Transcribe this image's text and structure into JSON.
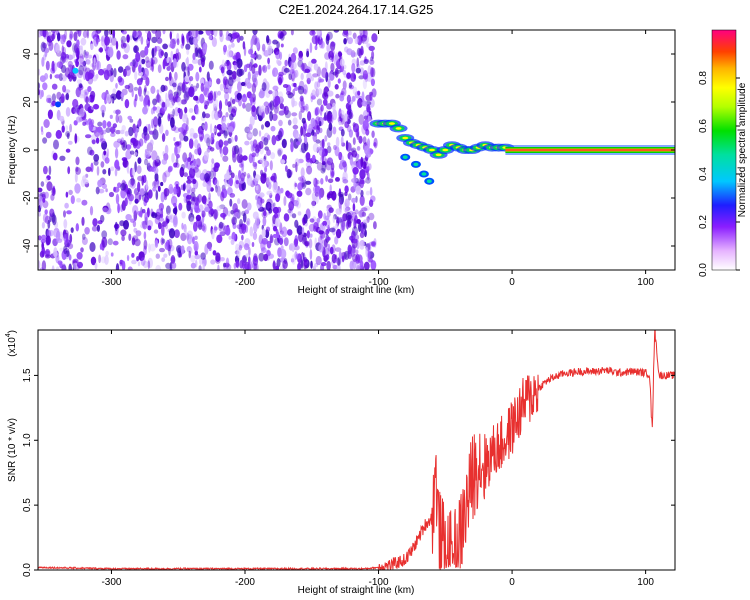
{
  "figure": {
    "title": "C2E1.2024.264.17.14.G25"
  },
  "colors": {
    "snr_line": "#e8302f",
    "spectrogram_low": "#6a00d8",
    "spectrogram_line": "#ff2a2a"
  },
  "chart_data": [
    {
      "type": "heatmap",
      "title": "C2E1.2024.264.17.14.G25",
      "xlabel": "Height of straight line (km)",
      "ylabel": "Frequency (Hz)",
      "xlim": [
        -355,
        122
      ],
      "ylim": [
        -50,
        50
      ],
      "x_ticks": [
        -300,
        -200,
        -100,
        0,
        100
      ],
      "y_ticks": [
        -40,
        -20,
        0,
        20,
        40
      ],
      "colorbar": {
        "label": "Normalized spectral amplitude",
        "range": [
          0,
          1
        ],
        "ticks": [
          "0.0",
          "0.2",
          "0.4",
          "0.6",
          "0.8"
        ],
        "colormap": "rainbow"
      },
      "description_features": {
        "noise_region_x": [
          -355,
          -102
        ],
        "signal_onset_x": -102,
        "carrier_frequency_hz": 0
      },
      "signal_trace": {
        "x": [
          -100,
          -95,
          -90,
          -85,
          -80,
          -75,
          -70,
          -65,
          -60,
          -55,
          -50,
          -45,
          -40,
          -35,
          -30,
          -25,
          -20,
          -15,
          -10,
          -5,
          0,
          10,
          20,
          40,
          60,
          80,
          100,
          122
        ],
        "y": [
          11,
          11,
          11,
          9,
          5,
          3,
          2,
          1,
          0,
          -2,
          0,
          2,
          1,
          0,
          0,
          1,
          2,
          1,
          1,
          1,
          0,
          0,
          0,
          0,
          0,
          0,
          0,
          0
        ]
      }
    },
    {
      "type": "line",
      "xlabel": "Height of straight line (km)",
      "ylabel": "SNR (10 * v/v)",
      "y_multiplier_label": "(x10",
      "y_multiplier_exp": "4",
      "xlim": [
        -355,
        122
      ],
      "ylim": [
        0,
        1.85
      ],
      "x_ticks": [
        -300,
        -200,
        -100,
        0,
        100
      ],
      "y_ticks": [
        "0.0",
        "0.5",
        "1.0",
        "1.5"
      ],
      "series": [
        {
          "x": [
            -355,
            -300,
            -250,
            -200,
            -150,
            -110,
            -100,
            -90,
            -80,
            -75,
            -70,
            -65,
            -60,
            -57,
            -55,
            -50,
            -45,
            -40,
            -35,
            -30,
            -25,
            -20,
            -15,
            -10,
            -5,
            0,
            5,
            10,
            15,
            20,
            25,
            30,
            35,
            40,
            45,
            50,
            60,
            70,
            80,
            90,
            100,
            103,
            105,
            106,
            107,
            110,
            115,
            122
          ],
          "y": [
            0.02,
            0.01,
            0.01,
            0.01,
            0.01,
            0.01,
            0.02,
            0.04,
            0.08,
            0.15,
            0.25,
            0.35,
            0.4,
            0.75,
            0.3,
            0.15,
            0.1,
            0.2,
            0.45,
            0.7,
            0.85,
            0.8,
            0.9,
            0.95,
            1.0,
            1.1,
            1.2,
            1.3,
            1.35,
            1.4,
            1.45,
            1.48,
            1.5,
            1.52,
            1.52,
            1.53,
            1.53,
            1.54,
            1.52,
            1.53,
            1.52,
            1.51,
            1.05,
            1.6,
            1.85,
            1.5,
            1.5,
            1.5
          ]
        }
      ]
    }
  ]
}
